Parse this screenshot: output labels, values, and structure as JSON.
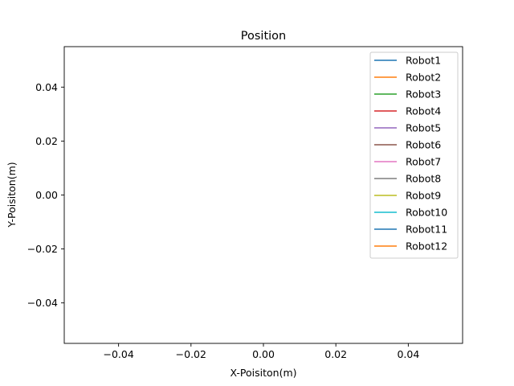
{
  "chart_data": {
    "type": "line",
    "title": "Position",
    "xlabel": "X-Poisiton(m)",
    "ylabel": "Y-Poisiton(m)",
    "xlim": [
      -0.055,
      0.055
    ],
    "ylim": [
      -0.055,
      0.055
    ],
    "xticks": [
      -0.04,
      -0.02,
      0.0,
      0.02,
      0.04
    ],
    "yticks": [
      -0.04,
      -0.02,
      0.0,
      0.02,
      0.04
    ],
    "xtick_labels": [
      "−0.04",
      "−0.02",
      "0.00",
      "0.02",
      "0.04"
    ],
    "ytick_labels": [
      "−0.04",
      "−0.02",
      "0.00",
      "0.02",
      "0.04"
    ],
    "grid": false,
    "legend_position": "top-right",
    "series": [
      {
        "name": "Robot1",
        "color": "#1f77b4",
        "x": [],
        "y": []
      },
      {
        "name": "Robot2",
        "color": "#ff7f0e",
        "x": [],
        "y": []
      },
      {
        "name": "Robot3",
        "color": "#2ca02c",
        "x": [],
        "y": []
      },
      {
        "name": "Robot4",
        "color": "#d62728",
        "x": [],
        "y": []
      },
      {
        "name": "Robot5",
        "color": "#9467bd",
        "x": [],
        "y": []
      },
      {
        "name": "Robot6",
        "color": "#8c564b",
        "x": [],
        "y": []
      },
      {
        "name": "Robot7",
        "color": "#e377c2",
        "x": [],
        "y": []
      },
      {
        "name": "Robot8",
        "color": "#7f7f7f",
        "x": [],
        "y": []
      },
      {
        "name": "Robot9",
        "color": "#bcbd22",
        "x": [],
        "y": []
      },
      {
        "name": "Robot10",
        "color": "#17becf",
        "x": [],
        "y": []
      },
      {
        "name": "Robot11",
        "color": "#1f77b4",
        "x": [],
        "y": []
      },
      {
        "name": "Robot12",
        "color": "#ff7f0e",
        "x": [],
        "y": []
      }
    ]
  }
}
